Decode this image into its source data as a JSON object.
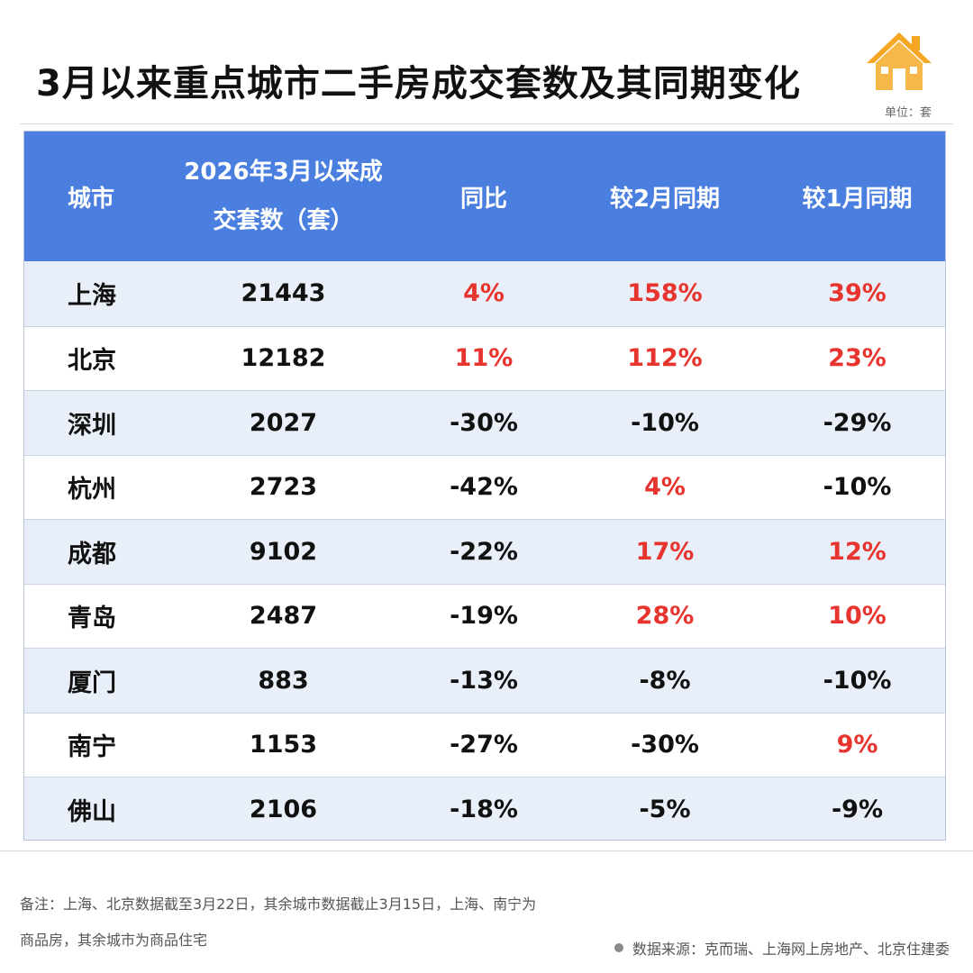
{
  "title": "3月以来重点城市二手房成交套数及其同期变化",
  "unit": "单位：套",
  "header": {
    "city": "城市",
    "volume_line1": "2026年3月以来成",
    "volume_line2": "交套数（套）",
    "yoy": "同比",
    "vs_feb": "较2月同期",
    "vs_jan": "较1月同期"
  },
  "rows": [
    {
      "city": "上海",
      "volume": "21443",
      "yoy": "4%",
      "vs_feb": "158%",
      "vs_jan": "39%"
    },
    {
      "city": "北京",
      "volume": "12182",
      "yoy": "11%",
      "vs_feb": "112%",
      "vs_jan": "23%"
    },
    {
      "city": "深圳",
      "volume": "2027",
      "yoy": "-30%",
      "vs_feb": "-10%",
      "vs_jan": "-29%"
    },
    {
      "city": "杭州",
      "volume": "2723",
      "yoy": "-42%",
      "vs_feb": "4%",
      "vs_jan": "-10%"
    },
    {
      "city": "成都",
      "volume": "9102",
      "yoy": "-22%",
      "vs_feb": "17%",
      "vs_jan": "12%"
    },
    {
      "city": "青岛",
      "volume": "2487",
      "yoy": "-19%",
      "vs_feb": "28%",
      "vs_jan": "10%"
    },
    {
      "city": "厦门",
      "volume": "883",
      "yoy": "-13%",
      "vs_feb": "-8%",
      "vs_jan": "-10%"
    },
    {
      "city": "南宁",
      "volume": "1153",
      "yoy": "-27%",
      "vs_feb": "-30%",
      "vs_jan": "9%"
    },
    {
      "city": "佛山",
      "volume": "2106",
      "yoy": "-18%",
      "vs_feb": "-5%",
      "vs_jan": "-9%"
    }
  ],
  "note": {
    "line1": "备注：上海、北京数据截至3月22日，其余城市数据截止3月15日，上海、南宁为",
    "line2": "商品房，其余城市为商品住宅"
  },
  "source": "数据来源：克而瑞、上海网上房地产、北京住建委",
  "colors": {
    "header_bg": "#4a7fe0",
    "positive": "#e8342f",
    "negative": "#111111",
    "row_alt": "#e9eff8",
    "icon_orange": "#f5a623"
  },
  "icons": {
    "logo": "house-icon"
  }
}
